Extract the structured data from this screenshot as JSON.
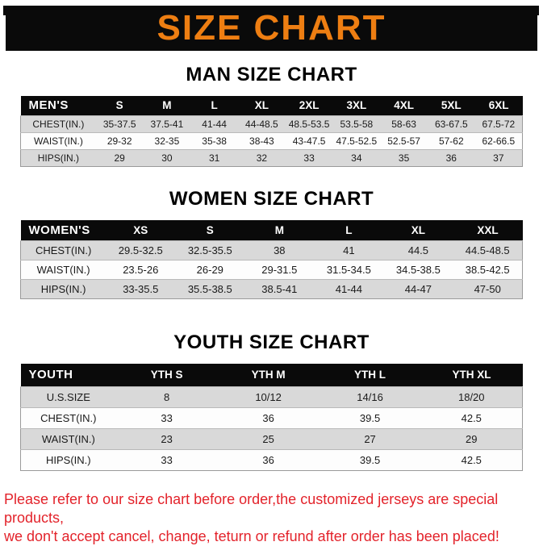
{
  "page": {
    "title": "SIZE CHART"
  },
  "sections": [
    {
      "title": "MAN SIZE CHART",
      "header": [
        "MEN'S",
        "S",
        "M",
        "L",
        "XL",
        "2XL",
        "3XL",
        "4XL",
        "5XL",
        "6XL"
      ],
      "rows": [
        [
          "CHEST(IN.)",
          "35-37.5",
          "37.5-41",
          "41-44",
          "44-48.5",
          "48.5-53.5",
          "53.5-58",
          "58-63",
          "63-67.5",
          "67.5-72"
        ],
        [
          "WAIST(IN.)",
          "29-32",
          "32-35",
          "35-38",
          "38-43",
          "43-47.5",
          "47.5-52.5",
          "52.5-57",
          "57-62",
          "62-66.5"
        ],
        [
          "HIPS(IN.)",
          "29",
          "30",
          "31",
          "32",
          "33",
          "34",
          "35",
          "36",
          "37"
        ]
      ]
    },
    {
      "title": "WOMEN SIZE CHART",
      "header": [
        "WOMEN'S",
        "XS",
        "S",
        "M",
        "L",
        "XL",
        "XXL"
      ],
      "rows": [
        [
          "CHEST(IN.)",
          "29.5-32.5",
          "32.5-35.5",
          "38",
          "41",
          "44.5",
          "44.5-48.5"
        ],
        [
          "WAIST(IN.)",
          "23.5-26",
          "26-29",
          "29-31.5",
          "31.5-34.5",
          "34.5-38.5",
          "38.5-42.5"
        ],
        [
          "HIPS(IN.)",
          "33-35.5",
          "35.5-38.5",
          "38.5-41",
          "41-44",
          "44-47",
          "47-50"
        ]
      ]
    },
    {
      "title": "YOUTH SIZE CHART",
      "header": [
        "YOUTH",
        "YTH S",
        "YTH M",
        "YTH L",
        "YTH XL"
      ],
      "rows": [
        [
          "U.S.SIZE",
          "8",
          "10/12",
          "14/16",
          "18/20"
        ],
        [
          "CHEST(IN.)",
          "33",
          "36",
          "39.5",
          "42.5"
        ],
        [
          "WAIST(IN.)",
          "23",
          "25",
          "27",
          "29"
        ],
        [
          "HIPS(IN.)",
          "33",
          "36",
          "39.5",
          "42.5"
        ]
      ]
    }
  ],
  "footer": {
    "line1": "Please refer to our size chart before order,the customized jerseys are special products,",
    "line2": "we don't accept cancel, change, teturn or refund after order has been placed!"
  }
}
